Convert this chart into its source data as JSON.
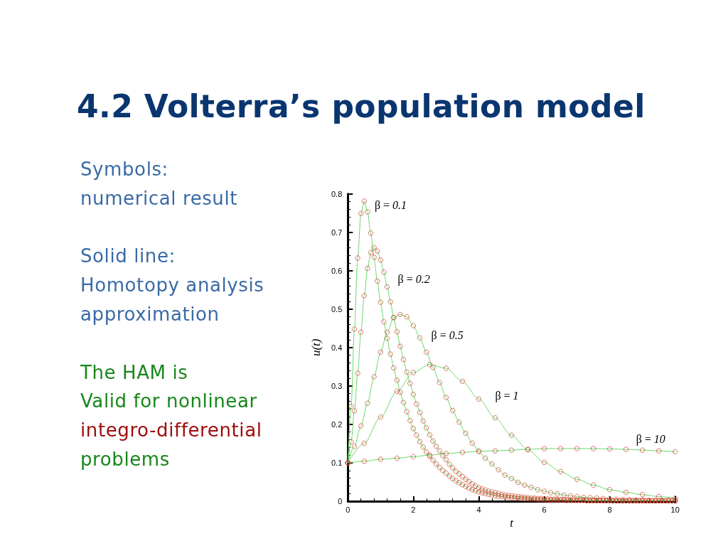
{
  "chart_data": {
    "type": "line",
    "title": "4.2 Volterra’s population model",
    "xlabel": "t",
    "ylabel": "u(t)",
    "annotations": [
      "Symbols:",
      "numerical result",
      "Solid line:",
      "Homotopy analysis",
      "approximation",
      "The HAM is",
      "Valid for nonlinear",
      "integro-differential",
      "problems",
      {
        "text": "β = 0.1",
        "x": 0.6,
        "y": 0.753
      },
      {
        "text": "β = 0.2",
        "x": 1.2,
        "y": 0.558
      },
      {
        "text": "β = 0.5",
        "x": 2.2,
        "y": 0.425
      },
      {
        "text": "β = 1",
        "x": 4,
        "y": 0.266
      },
      {
        "text": "β = 10",
        "x": 8.5,
        "y": 0.135
      }
    ],
    "xlim": [
      0,
      10
    ],
    "ylim": [
      0,
      0.8
    ],
    "xticks": [
      0,
      {
        "value": 0.4,
        "label": null
      },
      {
        "value": 0.8,
        "label": null
      },
      {
        "value": 1.2,
        "label": null
      },
      {
        "value": 1.6,
        "label": null
      },
      2,
      {
        "value": 2.4,
        "label": null
      },
      {
        "value": 2.8,
        "label": null
      },
      {
        "value": 3.2,
        "label": null
      },
      {
        "value": 3.6,
        "label": null
      },
      4,
      {
        "value": 4.4,
        "label": null
      },
      {
        "value": 4.8,
        "label": null
      },
      {
        "value": 5.2,
        "label": null
      },
      {
        "value": 5.6,
        "label": null
      },
      6,
      {
        "value": 6.4,
        "label": null
      },
      {
        "value": 6.8,
        "label": null
      },
      {
        "value": 7.2,
        "label": null
      },
      {
        "value": 7.6,
        "label": null
      },
      8,
      {
        "value": 8.4,
        "label": null
      },
      {
        "value": 8.8,
        "label": null
      },
      {
        "value": 9.2,
        "label": null
      },
      {
        "value": 9.6,
        "label": null
      },
      10
    ],
    "yticks": [
      0,
      {
        "value": 0.02,
        "label": null
      },
      {
        "value": 0.04,
        "label": null
      },
      {
        "value": 0.06,
        "label": null
      },
      {
        "value": 0.08,
        "label": null
      },
      0.1,
      {
        "value": 0.12,
        "label": null
      },
      {
        "value": 0.14,
        "label": null
      },
      {
        "value": 0.16,
        "label": null
      },
      {
        "value": 0.18,
        "label": null
      },
      0.2,
      {
        "value": 0.22,
        "label": null
      },
      {
        "value": 0.24,
        "label": null
      },
      {
        "value": 0.26,
        "label": null
      },
      {
        "value": 0.28,
        "label": null
      },
      0.3,
      {
        "value": 0.32,
        "label": null
      },
      {
        "value": 0.34,
        "label": null
      },
      {
        "value": 0.36,
        "label": null
      },
      {
        "value": 0.38,
        "label": null
      },
      0.4,
      {
        "value": 0.42,
        "label": null
      },
      {
        "value": 0.44,
        "label": null
      },
      {
        "value": 0.46,
        "label": null
      },
      {
        "value": 0.48,
        "label": null
      },
      0.5,
      {
        "value": 0.52,
        "label": null
      },
      {
        "value": 0.54,
        "label": null
      },
      {
        "value": 0.56,
        "label": null
      },
      {
        "value": 0.58,
        "label": null
      },
      0.6,
      {
        "value": 0.62,
        "label": null
      },
      {
        "value": 0.64,
        "label": null
      },
      {
        "value": 0.66,
        "label": null
      },
      {
        "value": 0.68,
        "label": null
      },
      0.7,
      {
        "value": 0.72,
        "label": null
      },
      {
        "value": 0.74,
        "label": null
      },
      {
        "value": 0.76,
        "label": null
      },
      {
        "value": 0.78,
        "label": null
      },
      0.8
    ],
    "marker": "circle",
    "line_style": "solid",
    "x": [
      0,
      0.1,
      0.2,
      0.3,
      0.4,
      0.5,
      0.6,
      0.7,
      0.8,
      0.9,
      1,
      1.1,
      1.2,
      1.3,
      1.4,
      1.5,
      1.6,
      1.7,
      1.8,
      1.9,
      2,
      2.1,
      2.2,
      2.3,
      2.4,
      2.5,
      2.6,
      2.7,
      2.8,
      2.9,
      3,
      3.1,
      3.2,
      3.3,
      3.4,
      3.5,
      3.6,
      3.7,
      3.8,
      3.9,
      4,
      4.1,
      4.2,
      4.3,
      4.4,
      4.5,
      4.6,
      4.7,
      4.8,
      4.9,
      5,
      5.1,
      5.2,
      5.3,
      5.4,
      5.5,
      5.6,
      5.7,
      5.8,
      5.9,
      6,
      6.1,
      6.2,
      6.3,
      6.4,
      6.5,
      6.6,
      6.7,
      6.8,
      6.9,
      7,
      7.1,
      7.2,
      7.3,
      7.4,
      7.5,
      7.6,
      7.7,
      7.8,
      7.9,
      8,
      8.1,
      8.2,
      8.3,
      8.4,
      8.5,
      8.6,
      8.7,
      8.8,
      8.9,
      9,
      9.1,
      9.2,
      9.3,
      9.4,
      9.5,
      9.6,
      9.7,
      9.8,
      9.9,
      10
    ],
    "series": [
      {
        "marker": "none",
        "color": "#6ad86a",
        "values": [
          0.1,
          0.247,
          0.448,
          0.633,
          0.749,
          0.781,
          0.753,
          0.698,
          0.635,
          0.573,
          0.518,
          0.467,
          0.424,
          0.383,
          0.347,
          0.315,
          0.284,
          0.257,
          0.233,
          0.21,
          0.189,
          0.172,
          0.155,
          0.141,
          0.128,
          0.117,
          0.107,
          0.097,
          0.088,
          0.08,
          0.073,
          0.065,
          0.059,
          0.053,
          0.048,
          0.043,
          0.038,
          0.034,
          0.03,
          0.027,
          0.024,
          0.022,
          0.02,
          0.018,
          0.016,
          0.014,
          0.013,
          0.012,
          0.011,
          0.01,
          0.009,
          0.008,
          0.007,
          0.007,
          0.006,
          0.006,
          0.005,
          0.005,
          0.004,
          0.004,
          0.004,
          0.003,
          0.003,
          0.003,
          0.003,
          0.003,
          0.003,
          0.002,
          0.002,
          0.002,
          0.002,
          0.002,
          0.002,
          0.001,
          0.001,
          0.001,
          0.001,
          0.001,
          0.001,
          0.001,
          0.001,
          0.001,
          0.001,
          0.001,
          0.001,
          0.001,
          0.001,
          0.001,
          0.001,
          0.001,
          0.001,
          0.001,
          0.001,
          0.001,
          0.001,
          0.001,
          0.001,
          0.001,
          0.001,
          0.001,
          0.001
        ]
      },
      {
        "type": "scatter",
        "color": "#cf3f2c",
        "values": [
          0.1,
          0.247,
          0.448,
          0.633,
          0.749,
          0.781,
          0.753,
          0.698,
          0.635,
          0.573,
          0.518,
          0.467,
          0.424,
          0.383,
          0.347,
          0.315,
          0.284,
          0.257,
          0.233,
          0.21,
          0.189,
          0.172,
          0.155,
          0.141,
          0.128,
          0.117,
          0.107,
          0.097,
          0.088,
          0.08,
          0.073,
          0.065,
          0.059,
          0.053,
          0.048,
          0.043,
          0.038,
          0.034,
          0.03,
          0.027,
          0.024,
          0.022,
          0.02,
          0.018,
          0.016,
          0.014,
          0.013,
          0.012,
          0.011,
          0.01,
          0.009,
          0.008,
          0.007,
          0.007,
          0.006,
          0.006,
          0.005,
          0.005,
          0.004,
          0.004,
          0.004,
          0.003,
          0.003,
          0.003,
          0.003,
          0.003,
          0.003,
          0.002,
          0.002,
          0.002,
          0.002,
          0.002,
          0.002,
          0.001,
          0.001,
          0.001,
          0.001,
          0.001,
          0.001,
          0.001,
          0.001,
          0.001,
          0.001,
          0.001,
          0.001,
          0.001,
          0.001,
          0.001,
          0.001,
          0.001,
          0.001,
          0.001,
          0.001,
          0.001,
          0.001,
          0.001,
          0.001,
          0.001,
          0.001,
          0.001,
          0.001
        ]
      },
      {
        "marker": "none",
        "color": "#6ad86a",
        "values": [
          0.1,
          0.155,
          0.235,
          0.333,
          0.44,
          0.535,
          0.606,
          0.647,
          0.66,
          0.651,
          0.628,
          0.596,
          0.558,
          0.519,
          0.478,
          0.441,
          0.403,
          0.369,
          0.336,
          0.307,
          0.278,
          0.253,
          0.231,
          0.209,
          0.191,
          0.173,
          0.157,
          0.143,
          0.131,
          0.119,
          0.108,
          0.096,
          0.087,
          0.078,
          0.071,
          0.064,
          0.057,
          0.051,
          0.045,
          0.04,
          0.035,
          0.032,
          0.029,
          0.026,
          0.024,
          0.022,
          0.02,
          0.018,
          0.016,
          0.015,
          0.014,
          0.013,
          0.012,
          0.011,
          0.01,
          0.009,
          0.008,
          0.008,
          0.007,
          0.007,
          0.006,
          0.006,
          0.005,
          0.005,
          0.005,
          0.004,
          0.004,
          0.004,
          0.003,
          0.003,
          0.003,
          0.003,
          0.003,
          0.002,
          0.002,
          0.002,
          0.002,
          0.002,
          0.002,
          0.002,
          0.002,
          0.001,
          0.001,
          0.001,
          0.001,
          0.001,
          0.001,
          0.001,
          0.001,
          0.001,
          0.001,
          0.001,
          0.001,
          0.001,
          0.001,
          0.001,
          0.001,
          0.001,
          0.001,
          0.001,
          0.001
        ]
      },
      {
        "type": "scatter",
        "color": "#cf3f2c",
        "values": [
          0.1,
          0.155,
          0.235,
          0.333,
          0.44,
          0.535,
          0.606,
          0.647,
          0.66,
          0.651,
          0.628,
          0.596,
          0.558,
          0.519,
          0.478,
          0.441,
          0.403,
          0.369,
          0.336,
          0.307,
          0.278,
          0.253,
          0.231,
          0.209,
          0.191,
          0.173,
          0.157,
          0.143,
          0.131,
          0.119,
          0.108,
          0.096,
          0.087,
          0.078,
          0.071,
          0.064,
          0.057,
          0.051,
          0.045,
          0.04,
          0.035,
          0.032,
          0.029,
          0.026,
          0.024,
          0.022,
          0.02,
          0.018,
          0.016,
          0.015,
          0.014,
          0.013,
          0.012,
          0.011,
          0.01,
          0.009,
          0.008,
          0.008,
          0.007,
          0.007,
          0.006,
          0.006,
          0.005,
          0.005,
          0.005,
          0.004,
          0.004,
          0.004,
          0.003,
          0.003,
          0.003,
          0.003,
          0.003,
          0.002,
          0.002,
          0.002,
          0.002,
          0.002,
          0.002,
          0.002,
          0.002,
          0.001,
          0.001,
          0.001,
          0.001,
          0.001,
          0.001,
          0.001,
          0.001,
          0.001,
          0.001,
          0.001,
          0.001,
          0.001,
          0.001,
          0.001,
          0.001,
          0.001,
          0.001,
          0.001,
          0.001
        ]
      },
      {
        "marker": "none",
        "color": "#6ad86a",
        "x": [
          0,
          0.2,
          0.4,
          0.6,
          0.8,
          1,
          1.2,
          1.4,
          1.6,
          1.8,
          2,
          2.2,
          2.4,
          2.6,
          2.8,
          3,
          3.2,
          3.4,
          3.6,
          3.8,
          4,
          4.2,
          4.4,
          4.6,
          4.8,
          5,
          5.2,
          5.4,
          5.6,
          5.8,
          6,
          6.2,
          6.4,
          6.6,
          6.8,
          7,
          7.2,
          7.4,
          7.6,
          7.8,
          8,
          8.2,
          8.4,
          8.6,
          8.8,
          9,
          9.2,
          9.4,
          9.6,
          9.8,
          10
        ],
        "values": [
          0.1,
          0.143,
          0.196,
          0.255,
          0.324,
          0.388,
          0.44,
          0.478,
          0.486,
          0.48,
          0.457,
          0.425,
          0.388,
          0.348,
          0.309,
          0.27,
          0.236,
          0.206,
          0.177,
          0.151,
          0.13,
          0.112,
          0.097,
          0.082,
          0.068,
          0.059,
          0.049,
          0.042,
          0.036,
          0.03,
          0.026,
          0.022,
          0.019,
          0.016,
          0.014,
          0.012,
          0.01,
          0.009,
          0.008,
          0.007,
          0.006,
          0.005,
          0.004,
          0.004,
          0.003,
          0.003,
          0.002,
          0.002,
          0.002,
          0.002,
          0.001
        ]
      },
      {
        "type": "scatter",
        "color": "#cf3f2c",
        "x": [
          0,
          0.2,
          0.4,
          0.6,
          0.8,
          1,
          1.2,
          1.4,
          1.6,
          1.8,
          2,
          2.2,
          2.4,
          2.6,
          2.8,
          3,
          3.2,
          3.4,
          3.6,
          3.8,
          4,
          4.2,
          4.4,
          4.6,
          4.8,
          5,
          5.2,
          5.4,
          5.6,
          5.8,
          6,
          6.2,
          6.4,
          6.6,
          6.8,
          7,
          7.2,
          7.4,
          7.6,
          7.8,
          8,
          8.2,
          8.4,
          8.6,
          8.8,
          9,
          9.2,
          9.4,
          9.6,
          9.8,
          10
        ],
        "values": [
          0.1,
          0.143,
          0.196,
          0.255,
          0.324,
          0.388,
          0.44,
          0.478,
          0.486,
          0.48,
          0.457,
          0.425,
          0.388,
          0.348,
          0.309,
          0.27,
          0.236,
          0.206,
          0.177,
          0.151,
          0.13,
          0.112,
          0.097,
          0.082,
          0.068,
          0.059,
          0.049,
          0.042,
          0.036,
          0.03,
          0.026,
          0.022,
          0.019,
          0.016,
          0.014,
          0.012,
          0.01,
          0.009,
          0.008,
          0.007,
          0.006,
          0.005,
          0.004,
          0.004,
          0.003,
          0.003,
          0.002,
          0.002,
          0.002,
          0.002,
          0.001
        ]
      },
      {
        "marker": "none",
        "color": "#6ad86a",
        "x": [
          0,
          0.5,
          1,
          1.5,
          2,
          2.5,
          3,
          3.5,
          4,
          4.5,
          5,
          5.5,
          6,
          6.5,
          7,
          7.5,
          8,
          8.5,
          9,
          9.5,
          10
        ],
        "values": [
          0.1,
          0.151,
          0.219,
          0.286,
          0.335,
          0.356,
          0.346,
          0.312,
          0.266,
          0.217,
          0.172,
          0.134,
          0.101,
          0.077,
          0.057,
          0.042,
          0.03,
          0.023,
          0.017,
          0.012,
          0.008
        ]
      },
      {
        "type": "scatter",
        "color": "#cf3f2c",
        "x": [
          0,
          0.5,
          1,
          1.5,
          2,
          2.5,
          3,
          3.5,
          4,
          4.5,
          5,
          5.5,
          6,
          6.5,
          7,
          7.5,
          8,
          8.5,
          9,
          9.5,
          10
        ],
        "values": [
          0.1,
          0.151,
          0.219,
          0.286,
          0.335,
          0.356,
          0.346,
          0.312,
          0.266,
          0.217,
          0.172,
          0.134,
          0.101,
          0.077,
          0.057,
          0.042,
          0.03,
          0.023,
          0.017,
          0.012,
          0.008
        ]
      },
      {
        "marker": "none",
        "color": "#6ad86a",
        "x": [
          0,
          0.5,
          1,
          1.5,
          2,
          2.5,
          3,
          3.5,
          4,
          4.5,
          5,
          5.5,
          6,
          6.5,
          7,
          7.5,
          8,
          8.5,
          9,
          9.5,
          10
        ],
        "values": [
          0.1,
          0.104,
          0.109,
          0.112,
          0.116,
          0.12,
          0.124,
          0.127,
          0.13,
          0.131,
          0.133,
          0.135,
          0.137,
          0.137,
          0.137,
          0.137,
          0.136,
          0.135,
          0.133,
          0.131,
          0.129
        ]
      },
      {
        "type": "scatter",
        "color": "#cf3f2c",
        "x": [
          0,
          0.5,
          1,
          1.5,
          2,
          2.5,
          3,
          3.5,
          4,
          4.5,
          5,
          5.5,
          6,
          6.5,
          7,
          7.5,
          8,
          8.5,
          9,
          9.5,
          10
        ],
        "values": [
          0.1,
          0.104,
          0.109,
          0.112,
          0.116,
          0.12,
          0.124,
          0.127,
          0.13,
          0.131,
          0.133,
          0.135,
          0.137,
          0.137,
          0.137,
          0.137,
          0.136,
          0.135,
          0.133,
          0.131,
          0.129
        ]
      }
    ]
  }
}
